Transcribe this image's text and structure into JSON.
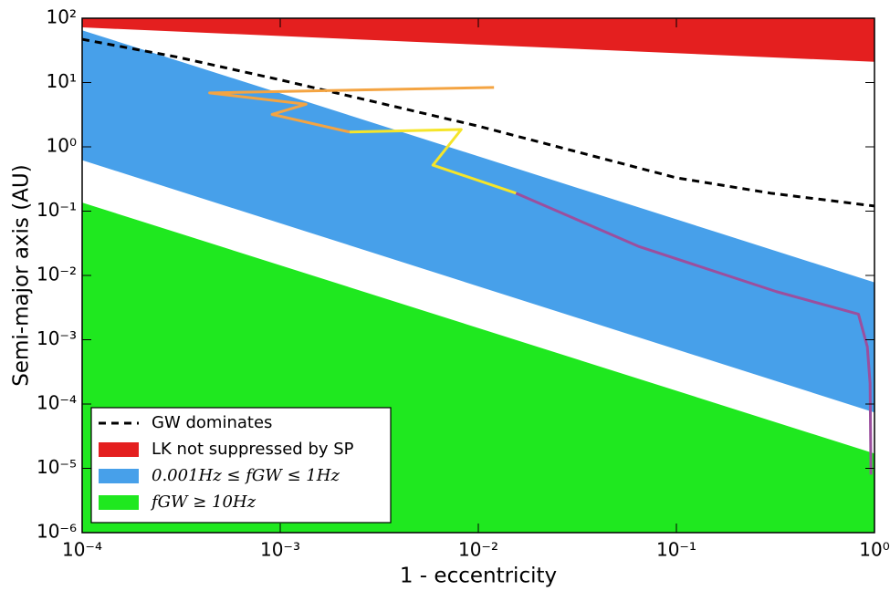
{
  "chart_data": {
    "type": "area",
    "xlabel": "1 - eccentricity",
    "ylabel": "Semi-major axis (AU)",
    "xscale": "log",
    "yscale": "log",
    "xlim": [
      0.0001,
      1
    ],
    "ylim": [
      1e-06,
      100
    ],
    "xticks": [
      {
        "value": 0.0001,
        "label": "10⁻⁴"
      },
      {
        "value": 0.001,
        "label": "10⁻³"
      },
      {
        "value": 0.01,
        "label": "10⁻²"
      },
      {
        "value": 0.1,
        "label": "10⁻¹"
      },
      {
        "value": 1,
        "label": "10⁰"
      }
    ],
    "yticks": [
      {
        "value": 1e-06,
        "label": "10⁻⁶"
      },
      {
        "value": 1e-05,
        "label": "10⁻⁵"
      },
      {
        "value": 0.0001,
        "label": "10⁻⁴"
      },
      {
        "value": 0.001,
        "label": "10⁻³"
      },
      {
        "value": 0.01,
        "label": "10⁻²"
      },
      {
        "value": 0.1,
        "label": "10⁻¹"
      },
      {
        "value": 1,
        "label": "10⁰"
      },
      {
        "value": 10,
        "label": "10¹"
      },
      {
        "value": 100,
        "label": "10²"
      }
    ],
    "legend": "lower left",
    "series": [
      {
        "name": "GW dominates",
        "color": "#000000",
        "style": "dashed",
        "x": [
          0.0001,
          0.0003,
          0.001,
          0.003,
          0.01,
          0.03,
          0.1,
          0.3,
          1
        ],
        "values": [
          47,
          25,
          11,
          5,
          2.1,
          0.87,
          0.33,
          0.19,
          0.12
        ]
      },
      {
        "name": "LK not suppressed by SP",
        "color": "#e41f1f",
        "x": [
          0.0001,
          1
        ],
        "lower": [
          72,
          21
        ],
        "upper": [
          100,
          100
        ]
      },
      {
        "name": "0.001Hz ≤ fGW ≤ 1Hz",
        "color": "#47a0ea",
        "x": [
          0.0001,
          1
        ],
        "lower": [
          0.62,
          7.4e-05
        ],
        "upper": [
          65,
          0.0078
        ]
      },
      {
        "name": "fGW ≥ 10Hz",
        "color": "#1fe81f",
        "x": [
          0.0001,
          1
        ],
        "lower": [
          1e-06,
          1e-06
        ],
        "upper": [
          0.136,
          1.7e-05
        ]
      },
      {
        "color": "#f4a442",
        "style": "solid",
        "x": [
          0.012,
          0.00044,
          0.00135,
          0.00091,
          0.00224
        ],
        "values": [
          8.4,
          6.9,
          4.6,
          3.2,
          1.7
        ]
      },
      {
        "color": "#f5e52a",
        "style": "solid",
        "x": [
          0.00224,
          0.0082,
          0.0059,
          0.0155
        ],
        "values": [
          1.7,
          1.86,
          0.52,
          0.19
        ]
      },
      {
        "color": "#9b4f9e",
        "style": "solid",
        "x": [
          0.0155,
          0.065,
          0.32,
          0.83,
          0.92,
          0.95,
          0.96
        ],
        "values": [
          0.19,
          0.028,
          0.0056,
          0.0025,
          0.00078,
          0.00021,
          8e-06
        ]
      }
    ]
  }
}
